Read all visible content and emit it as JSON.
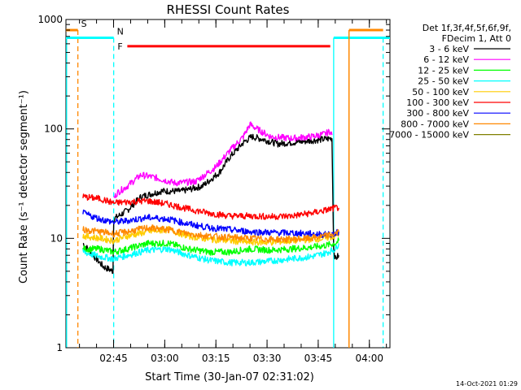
{
  "chart_data": {
    "type": "line",
    "title": "RHESSI Count Rates",
    "xlabel": "Start Time (30-Jan-07 02:31:02)",
    "ylabel": "Count Rate (s⁻¹ detector segment⁻¹)",
    "yscale": "log",
    "ylim": [
      1,
      1000
    ],
    "xlim_minutes_after_start": [
      0,
      95
    ],
    "x_ticks": [
      {
        "label": "02:45",
        "minute": 13.97
      },
      {
        "label": "03:00",
        "minute": 28.97
      },
      {
        "label": "03:15",
        "minute": 43.97
      },
      {
        "label": "03:30",
        "minute": 58.97
      },
      {
        "label": "03:45",
        "minute": 73.97
      },
      {
        "label": "04:00",
        "minute": 88.97
      }
    ],
    "y_ticks": [
      {
        "label": "1",
        "value": 1
      },
      {
        "label": "10",
        "value": 10
      },
      {
        "label": "100",
        "value": 100
      },
      {
        "label": "1000",
        "value": 1000
      }
    ],
    "legend": {
      "placement": "top-right",
      "header": [
        "Det 1f,3f,4f,5f,6f,9f,",
        "FDecim 1, Att 0"
      ]
    },
    "series": [
      {
        "name": "3 - 6 keV",
        "color": "#000000",
        "points": [
          [
            5,
            9
          ],
          [
            8,
            7
          ],
          [
            11,
            5.5
          ],
          [
            13.8,
            5
          ],
          [
            14,
            15
          ],
          [
            18,
            18
          ],
          [
            22,
            24
          ],
          [
            28,
            27
          ],
          [
            34,
            27
          ],
          [
            40,
            30
          ],
          [
            45,
            40
          ],
          [
            48,
            55
          ],
          [
            52,
            75
          ],
          [
            54.5,
            85
          ],
          [
            58,
            80
          ],
          [
            62,
            73
          ],
          [
            68,
            76
          ],
          [
            75,
            80
          ],
          [
            78,
            82
          ],
          [
            78.5,
            8
          ],
          [
            79,
            6.5
          ],
          [
            80,
            7
          ]
        ]
      },
      {
        "name": "6 - 12 keV",
        "color": "#ff00ff",
        "points": [
          [
            14,
            23
          ],
          [
            15,
            26
          ],
          [
            18,
            30
          ],
          [
            22,
            38
          ],
          [
            26,
            36
          ],
          [
            32,
            32
          ],
          [
            38,
            33
          ],
          [
            44,
            45
          ],
          [
            48,
            63
          ],
          [
            52,
            85
          ],
          [
            54,
            110
          ],
          [
            56,
            100
          ],
          [
            60,
            85
          ],
          [
            66,
            82
          ],
          [
            72,
            85
          ],
          [
            76,
            90
          ],
          [
            77.5,
            95
          ],
          [
            78,
            88
          ]
        ]
      },
      {
        "name": "12 - 25 keV",
        "color": "#00ff00",
        "points": [
          [
            5,
            8
          ],
          [
            10,
            8
          ],
          [
            14,
            7.5
          ],
          [
            18,
            8
          ],
          [
            24,
            9
          ],
          [
            30,
            9
          ],
          [
            36,
            8
          ],
          [
            42,
            7.5
          ],
          [
            48,
            7.5
          ],
          [
            54,
            8
          ],
          [
            60,
            7.8
          ],
          [
            66,
            8
          ],
          [
            72,
            8.3
          ],
          [
            76,
            8.6
          ],
          [
            79,
            9
          ],
          [
            80,
            9.5
          ]
        ]
      },
      {
        "name": "25 - 50 keV",
        "color": "#00ffff",
        "points": [
          [
            5,
            7.5
          ],
          [
            10,
            6.8
          ],
          [
            14,
            6.5
          ],
          [
            18,
            7
          ],
          [
            24,
            7.8
          ],
          [
            30,
            8
          ],
          [
            36,
            7
          ],
          [
            42,
            6.3
          ],
          [
            48,
            6
          ],
          [
            54,
            6
          ],
          [
            60,
            6.2
          ],
          [
            66,
            6.5
          ],
          [
            72,
            6.8
          ],
          [
            76,
            7.3
          ],
          [
            79,
            8
          ],
          [
            80,
            9
          ]
        ]
      },
      {
        "name": "50 - 100 keV",
        "color": "#ffcc00",
        "points": [
          [
            5,
            10.5
          ],
          [
            10,
            10
          ],
          [
            14,
            9.5
          ],
          [
            18,
            10.5
          ],
          [
            24,
            11.5
          ],
          [
            30,
            12
          ],
          [
            36,
            10.5
          ],
          [
            42,
            9.8
          ],
          [
            48,
            9.5
          ],
          [
            54,
            9.2
          ],
          [
            60,
            9.2
          ],
          [
            66,
            9.5
          ],
          [
            72,
            9.8
          ],
          [
            76,
            10
          ],
          [
            79,
            10.5
          ],
          [
            80,
            11
          ]
        ]
      },
      {
        "name": "100 - 300 keV",
        "color": "#ff0000",
        "points": [
          [
            5,
            24
          ],
          [
            10,
            23
          ],
          [
            14,
            21
          ],
          [
            18,
            21.5
          ],
          [
            24,
            22
          ],
          [
            30,
            20.5
          ],
          [
            36,
            18.5
          ],
          [
            42,
            17
          ],
          [
            48,
            16
          ],
          [
            54,
            16
          ],
          [
            60,
            15.8
          ],
          [
            66,
            16
          ],
          [
            72,
            17
          ],
          [
            76,
            18
          ],
          [
            79,
            19
          ],
          [
            80,
            19
          ]
        ]
      },
      {
        "name": "300 - 800 keV",
        "color": "#0000ff",
        "points": [
          [
            5,
            17
          ],
          [
            10,
            15
          ],
          [
            14,
            14
          ],
          [
            18,
            14.5
          ],
          [
            24,
            15.5
          ],
          [
            30,
            15
          ],
          [
            36,
            13.5
          ],
          [
            42,
            12.5
          ],
          [
            48,
            12
          ],
          [
            54,
            11.5
          ],
          [
            60,
            11.3
          ],
          [
            66,
            11.2
          ],
          [
            72,
            11
          ],
          [
            76,
            10.8
          ],
          [
            79,
            11
          ],
          [
            80,
            11.5
          ]
        ]
      },
      {
        "name": "800 - 7000 keV",
        "color": "#ff8800",
        "points": [
          [
            5,
            12
          ],
          [
            10,
            11.5
          ],
          [
            14,
            11
          ],
          [
            18,
            11.5
          ],
          [
            24,
            12.5
          ],
          [
            30,
            12
          ],
          [
            36,
            11
          ],
          [
            42,
            10.5
          ],
          [
            48,
            10.2
          ],
          [
            54,
            10
          ],
          [
            60,
            9.8
          ],
          [
            66,
            9.8
          ],
          [
            72,
            10
          ],
          [
            76,
            10.5
          ],
          [
            79,
            11
          ],
          [
            80,
            11.5
          ]
        ]
      },
      {
        "name": "7000 - 15000 keV",
        "color": "#808000",
        "points": []
      }
    ],
    "annotations": [
      {
        "label": "S",
        "color": "#ff8800",
        "start_minute": 0,
        "end_minute": 3.5,
        "level": 800,
        "dashed_at_minute": 3.5
      },
      {
        "label": "N",
        "color": "#00ffff",
        "start_minute": 0,
        "end_minute": 14,
        "level": 680,
        "dashed_at_minute": 14
      },
      {
        "label": "F",
        "color": "#ff0000",
        "start_minute": 18,
        "end_minute": 77.5,
        "level": 570
      },
      {
        "label": "",
        "color": "#00ffff",
        "start_minute": 78.5,
        "end_minute": 95,
        "level": 680,
        "dashed_at_minute": 93
      },
      {
        "label": "",
        "color": "#ff8800",
        "start_minute": 83,
        "end_minute": 93,
        "level": 800,
        "solid_at_minute": 83
      }
    ]
  },
  "timestamp": "14-Oct-2021 01:29"
}
